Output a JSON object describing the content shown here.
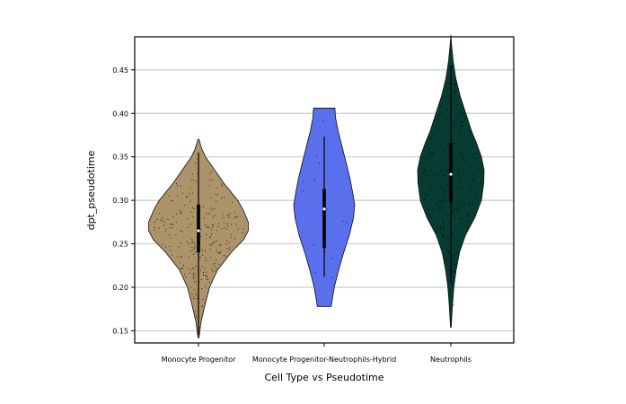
{
  "chart_data": {
    "type": "violin",
    "xlabel": "Cell Type vs Pseudotime",
    "ylabel": "dpt_pseudotime",
    "ylim": [
      0.136,
      0.488
    ],
    "yticks": [
      0.15,
      0.2,
      0.25,
      0.3,
      0.35,
      0.4,
      0.45
    ],
    "ytick_labels": [
      "0.15",
      "0.20",
      "0.25",
      "0.30",
      "0.35",
      "0.40",
      "0.45"
    ],
    "grid": "horizontal",
    "categories": [
      "Monocyte Progenitor",
      "Monocyte Progenitor-Neutrophils-Hybrid",
      "Neutrophils"
    ],
    "series": [
      {
        "category": "Monocyte Progenitor",
        "color": "#AD9369",
        "min": 0.142,
        "max": 0.37,
        "q1": 0.24,
        "median": 0.265,
        "q3": 0.295,
        "whisker_low": 0.145,
        "whisker_high": 0.355,
        "density": [
          [
            0.142,
            0.01
          ],
          [
            0.16,
            0.05
          ],
          [
            0.18,
            0.13
          ],
          [
            0.2,
            0.22
          ],
          [
            0.22,
            0.38
          ],
          [
            0.24,
            0.65
          ],
          [
            0.255,
            0.9
          ],
          [
            0.265,
            0.99
          ],
          [
            0.275,
            0.99
          ],
          [
            0.29,
            0.88
          ],
          [
            0.3,
            0.78
          ],
          [
            0.32,
            0.5
          ],
          [
            0.335,
            0.32
          ],
          [
            0.35,
            0.14
          ],
          [
            0.36,
            0.06
          ],
          [
            0.37,
            0.01
          ]
        ]
      },
      {
        "category": "Monocyte Progenitor-Neutrophils-Hybrid",
        "color": "#5A6FEB",
        "min": 0.178,
        "max": 0.406,
        "q1": 0.245,
        "median": 0.29,
        "q3": 0.313,
        "whisker_low": 0.212,
        "whisker_high": 0.373,
        "density": [
          [
            0.178,
            0.22
          ],
          [
            0.2,
            0.32
          ],
          [
            0.22,
            0.46
          ],
          [
            0.24,
            0.62
          ],
          [
            0.26,
            0.8
          ],
          [
            0.28,
            0.93
          ],
          [
            0.295,
            0.97
          ],
          [
            0.31,
            0.9
          ],
          [
            0.325,
            0.82
          ],
          [
            0.34,
            0.72
          ],
          [
            0.36,
            0.58
          ],
          [
            0.38,
            0.44
          ],
          [
            0.395,
            0.36
          ],
          [
            0.406,
            0.34
          ]
        ]
      },
      {
        "category": "Neutrophils",
        "color": "#063C32",
        "min": 0.154,
        "max": 0.49,
        "q1": 0.298,
        "median": 0.33,
        "q3": 0.366,
        "whisker_low": 0.205,
        "whisker_high": 0.455,
        "density": [
          [
            0.154,
            0.01
          ],
          [
            0.18,
            0.05
          ],
          [
            0.2,
            0.09
          ],
          [
            0.22,
            0.16
          ],
          [
            0.24,
            0.26
          ],
          [
            0.26,
            0.44
          ],
          [
            0.28,
            0.72
          ],
          [
            0.3,
            0.92
          ],
          [
            0.32,
            0.99
          ],
          [
            0.335,
            1.0
          ],
          [
            0.35,
            0.92
          ],
          [
            0.365,
            0.78
          ],
          [
            0.38,
            0.62
          ],
          [
            0.4,
            0.45
          ],
          [
            0.42,
            0.28
          ],
          [
            0.44,
            0.15
          ],
          [
            0.46,
            0.07
          ],
          [
            0.48,
            0.02
          ],
          [
            0.49,
            0.0
          ]
        ]
      }
    ]
  }
}
